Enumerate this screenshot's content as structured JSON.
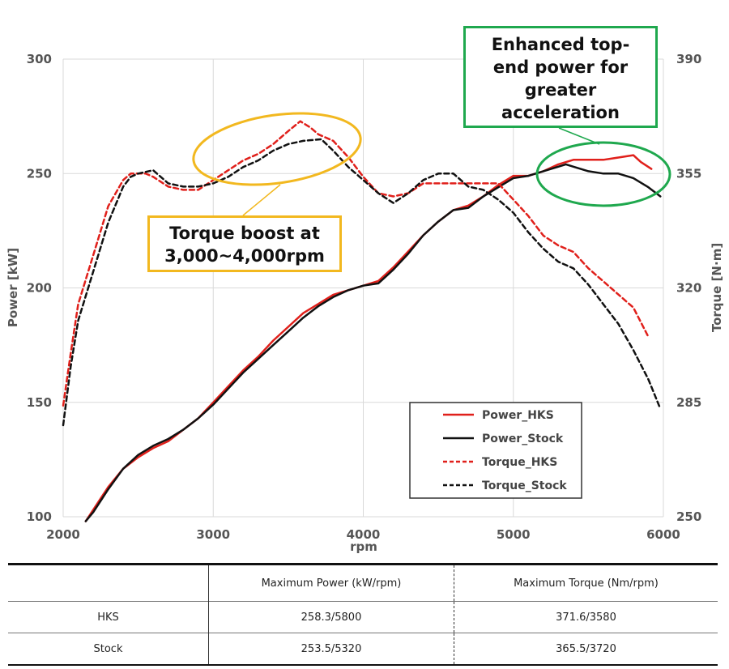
{
  "chart_data": {
    "type": "line",
    "xlabel": "rpm",
    "ylabel_left": "Power [kW]",
    "ylabel_right": "Torque [N·m]",
    "xlim": [
      2000,
      6000
    ],
    "ylim_left": [
      100,
      300
    ],
    "ylim_right": [
      250,
      390
    ],
    "x_ticks": [
      2000,
      3000,
      4000,
      5000,
      6000
    ],
    "y_ticks_left": [
      100,
      150,
      200,
      250,
      300
    ],
    "y_ticks_right": [
      250,
      285,
      320,
      355,
      390
    ],
    "grid": true,
    "legend_position": "bottom-right",
    "series": [
      {
        "name": "Power_HKS",
        "axis": "left",
        "color": "#e0201b",
        "dash": false,
        "points": [
          [
            2150,
            98
          ],
          [
            2200,
            103
          ],
          [
            2300,
            113
          ],
          [
            2400,
            121
          ],
          [
            2500,
            126
          ],
          [
            2600,
            130
          ],
          [
            2700,
            133
          ],
          [
            2800,
            138
          ],
          [
            2900,
            143
          ],
          [
            3000,
            150
          ],
          [
            3100,
            157
          ],
          [
            3200,
            164
          ],
          [
            3300,
            170
          ],
          [
            3400,
            177
          ],
          [
            3500,
            183
          ],
          [
            3600,
            189
          ],
          [
            3700,
            193
          ],
          [
            3800,
            197
          ],
          [
            3900,
            199
          ],
          [
            4000,
            201
          ],
          [
            4100,
            203
          ],
          [
            4200,
            209
          ],
          [
            4300,
            216
          ],
          [
            4400,
            223
          ],
          [
            4500,
            229
          ],
          [
            4600,
            234
          ],
          [
            4700,
            236
          ],
          [
            4800,
            240
          ],
          [
            4900,
            245
          ],
          [
            5000,
            249
          ],
          [
            5100,
            249
          ],
          [
            5200,
            251
          ],
          [
            5300,
            254
          ],
          [
            5400,
            256
          ],
          [
            5500,
            256
          ],
          [
            5600,
            256
          ],
          [
            5700,
            257
          ],
          [
            5800,
            258
          ],
          [
            5850,
            255
          ],
          [
            5920,
            252
          ]
        ]
      },
      {
        "name": "Power_Stock",
        "axis": "left",
        "color": "#111111",
        "dash": false,
        "points": [
          [
            2150,
            98
          ],
          [
            2200,
            102
          ],
          [
            2300,
            112
          ],
          [
            2400,
            121
          ],
          [
            2500,
            127
          ],
          [
            2600,
            131
          ],
          [
            2700,
            134
          ],
          [
            2800,
            138
          ],
          [
            2900,
            143
          ],
          [
            3000,
            149
          ],
          [
            3100,
            156
          ],
          [
            3200,
            163
          ],
          [
            3300,
            169
          ],
          [
            3400,
            175
          ],
          [
            3500,
            181
          ],
          [
            3600,
            187
          ],
          [
            3700,
            192
          ],
          [
            3800,
            196
          ],
          [
            3900,
            199
          ],
          [
            4000,
            201
          ],
          [
            4100,
            202
          ],
          [
            4200,
            208
          ],
          [
            4300,
            215
          ],
          [
            4400,
            223
          ],
          [
            4500,
            229
          ],
          [
            4600,
            234
          ],
          [
            4700,
            235
          ],
          [
            4800,
            240
          ],
          [
            4900,
            244
          ],
          [
            5000,
            248
          ],
          [
            5100,
            249
          ],
          [
            5200,
            251
          ],
          [
            5300,
            253
          ],
          [
            5350,
            254
          ],
          [
            5400,
            253
          ],
          [
            5500,
            251
          ],
          [
            5600,
            250
          ],
          [
            5700,
            250
          ],
          [
            5800,
            248
          ],
          [
            5900,
            244
          ],
          [
            5980,
            240
          ]
        ]
      },
      {
        "name": "Torque_HKS",
        "axis": "right",
        "color": "#e0201b",
        "dash": true,
        "points": [
          [
            2000,
            284
          ],
          [
            2050,
            300
          ],
          [
            2100,
            315
          ],
          [
            2200,
            330
          ],
          [
            2300,
            345
          ],
          [
            2400,
            353
          ],
          [
            2450,
            355
          ],
          [
            2500,
            355
          ],
          [
            2550,
            355
          ],
          [
            2600,
            354
          ],
          [
            2700,
            351
          ],
          [
            2800,
            350
          ],
          [
            2900,
            350
          ],
          [
            3000,
            353
          ],
          [
            3100,
            356
          ],
          [
            3200,
            359
          ],
          [
            3300,
            361
          ],
          [
            3400,
            364
          ],
          [
            3500,
            368
          ],
          [
            3580,
            371
          ],
          [
            3650,
            369
          ],
          [
            3700,
            367
          ],
          [
            3800,
            365
          ],
          [
            3900,
            360
          ],
          [
            4000,
            354
          ],
          [
            4100,
            349
          ],
          [
            4200,
            348
          ],
          [
            4300,
            349
          ],
          [
            4400,
            352
          ],
          [
            4500,
            352
          ],
          [
            4600,
            352
          ],
          [
            4700,
            352
          ],
          [
            4800,
            352
          ],
          [
            4900,
            352
          ],
          [
            5000,
            347
          ],
          [
            5100,
            342
          ],
          [
            5200,
            336
          ],
          [
            5300,
            333
          ],
          [
            5400,
            331
          ],
          [
            5500,
            326
          ],
          [
            5600,
            322
          ],
          [
            5700,
            318
          ],
          [
            5800,
            314
          ],
          [
            5900,
            305
          ]
        ]
      },
      {
        "name": "Torque_Stock",
        "axis": "right",
        "color": "#111111",
        "dash": true,
        "points": [
          [
            2000,
            278
          ],
          [
            2050,
            296
          ],
          [
            2100,
            310
          ],
          [
            2200,
            325
          ],
          [
            2300,
            340
          ],
          [
            2400,
            351
          ],
          [
            2450,
            354
          ],
          [
            2500,
            355
          ],
          [
            2600,
            356
          ],
          [
            2700,
            352
          ],
          [
            2800,
            351
          ],
          [
            2900,
            351
          ],
          [
            3000,
            352
          ],
          [
            3100,
            354
          ],
          [
            3200,
            357
          ],
          [
            3300,
            359
          ],
          [
            3400,
            362
          ],
          [
            3500,
            364
          ],
          [
            3600,
            365
          ],
          [
            3720,
            365.5
          ],
          [
            3800,
            362
          ],
          [
            3900,
            357
          ],
          [
            4000,
            353
          ],
          [
            4100,
            349
          ],
          [
            4200,
            346
          ],
          [
            4300,
            349
          ],
          [
            4400,
            353
          ],
          [
            4500,
            355
          ],
          [
            4600,
            355
          ],
          [
            4700,
            351
          ],
          [
            4800,
            350
          ],
          [
            4900,
            347
          ],
          [
            5000,
            343
          ],
          [
            5100,
            337
          ],
          [
            5200,
            332
          ],
          [
            5300,
            328
          ],
          [
            5400,
            326
          ],
          [
            5500,
            321
          ],
          [
            5600,
            315
          ],
          [
            5700,
            309
          ],
          [
            5800,
            301
          ],
          [
            5900,
            292
          ],
          [
            5980,
            283
          ]
        ]
      }
    ],
    "annotations": [
      {
        "text_lines": [
          "Torque boost at",
          "3,000~4,000rpm"
        ],
        "color": "#f2b81f"
      },
      {
        "text_lines": [
          "Enhanced top-",
          "end power for",
          "greater",
          "acceleration"
        ],
        "color": "#1fa84e"
      }
    ]
  },
  "table": {
    "headers": [
      "",
      "Maximum Power (kW/rpm)",
      "Maximum Torque (Nm/rpm)"
    ],
    "rows": [
      {
        "label": "HKS",
        "power": "258.3/5800",
        "torque": "371.6/3580"
      },
      {
        "label": "Stock",
        "power": "253.5/5320",
        "torque": "365.5/3720"
      }
    ]
  }
}
